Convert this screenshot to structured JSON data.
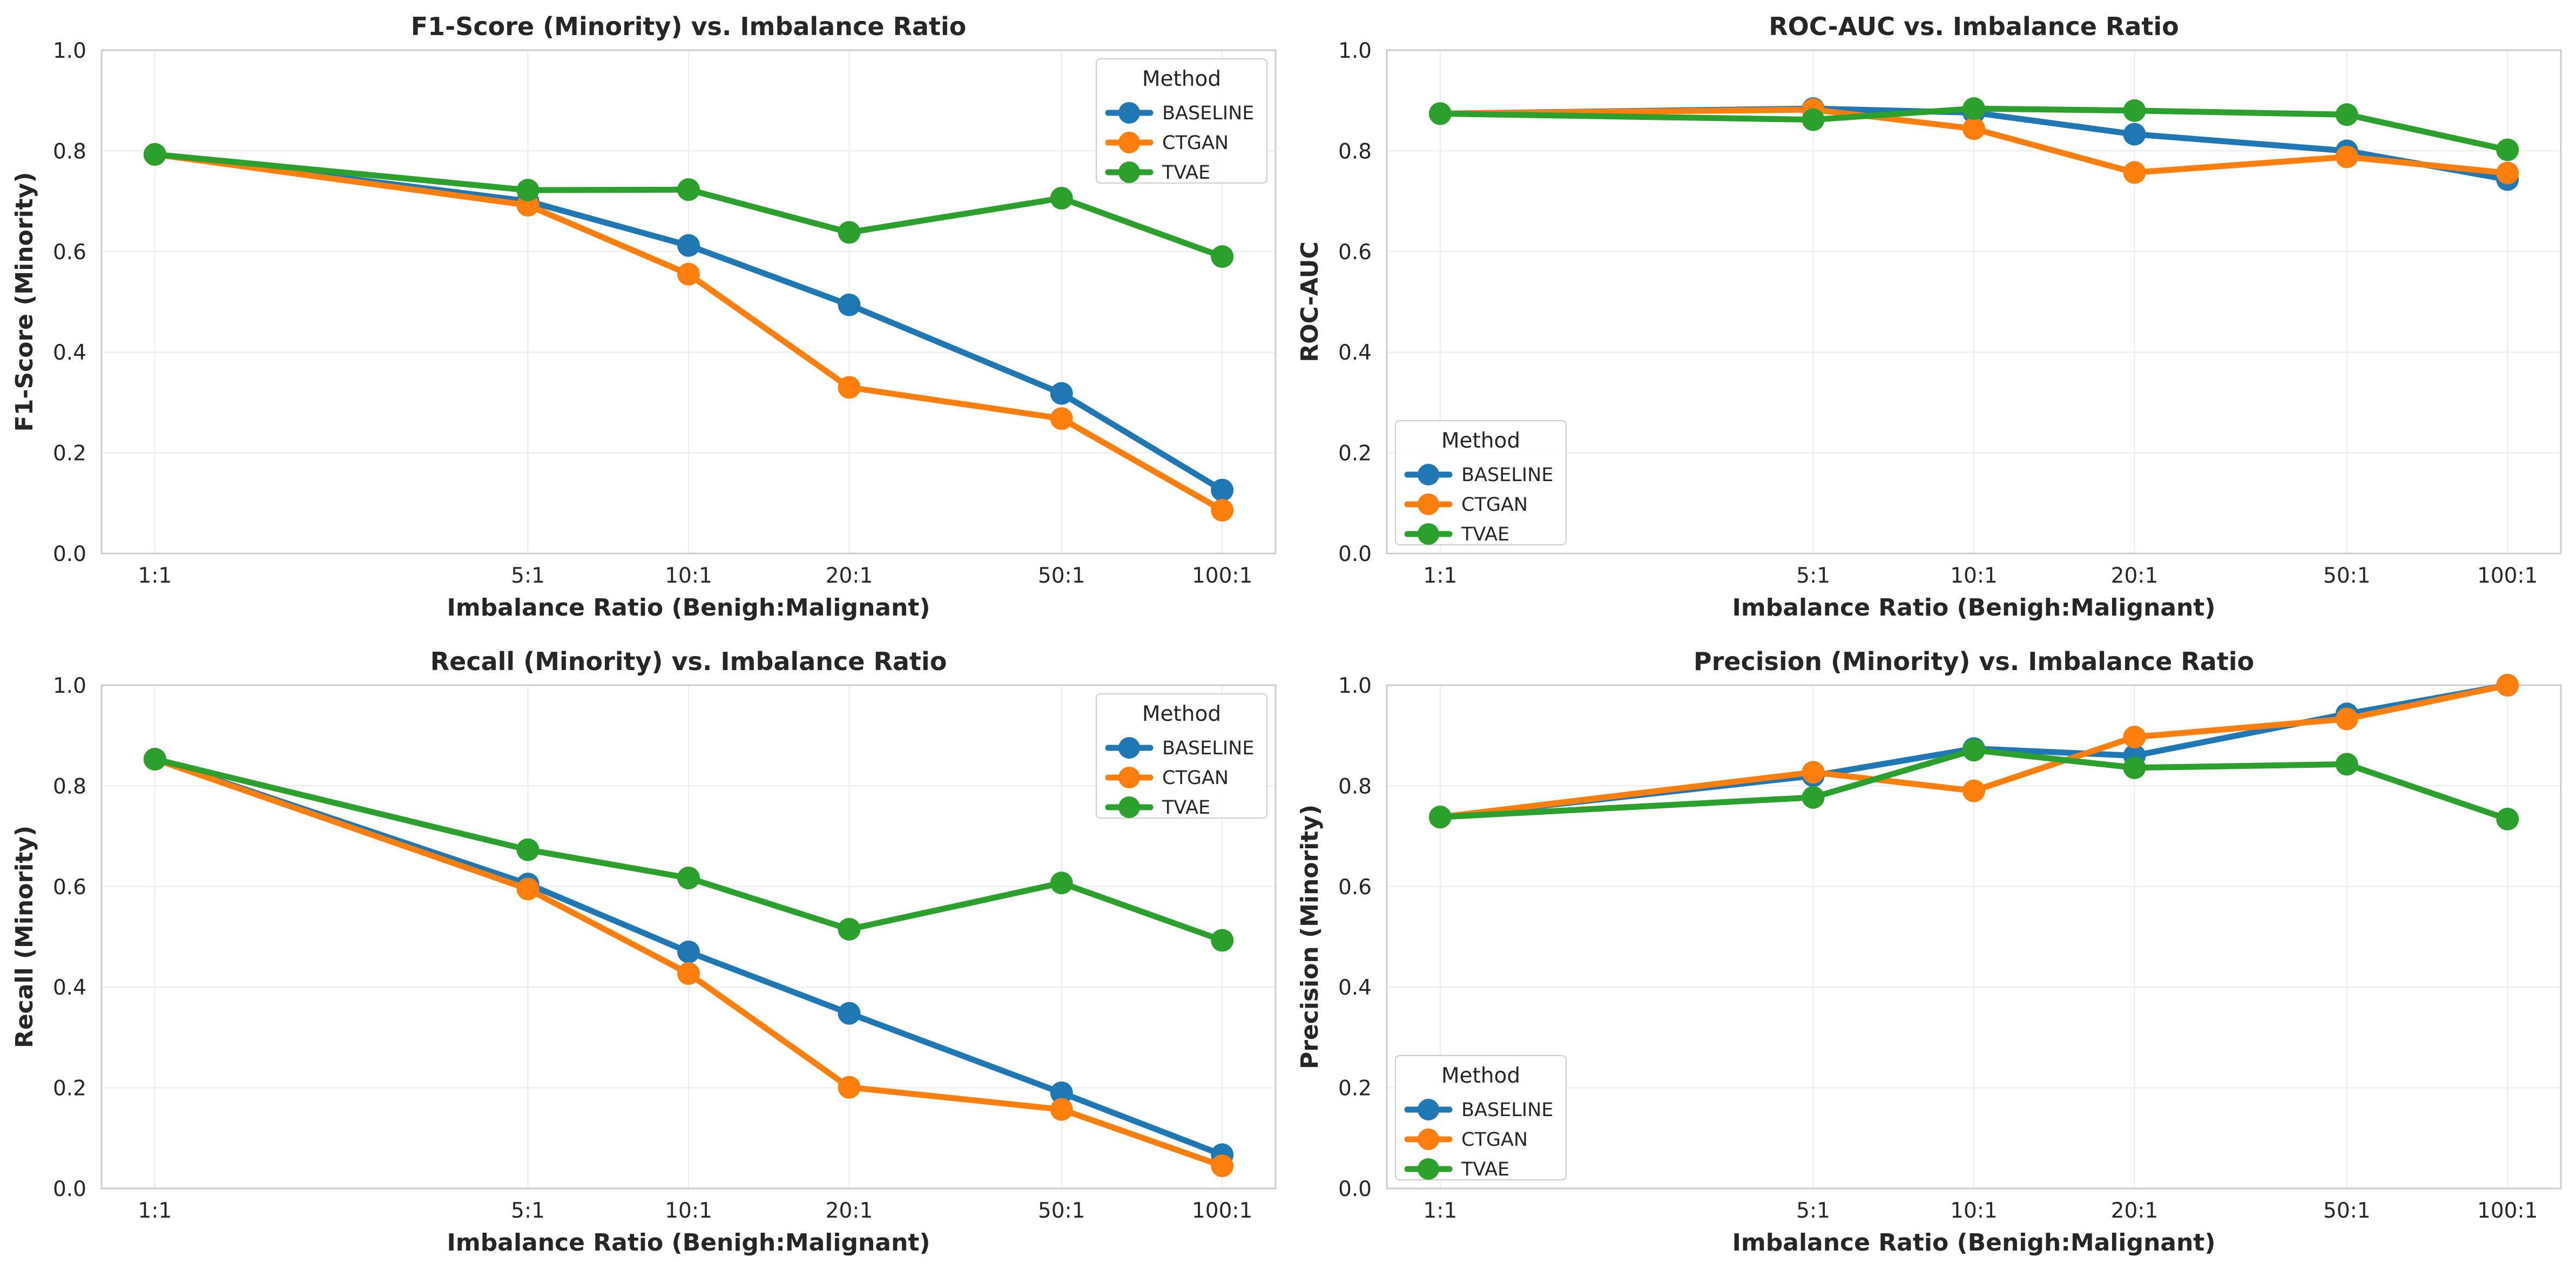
{
  "colors": {
    "BASELINE": "#1f77b4",
    "CTGAN": "#ff7f0e",
    "TVAE": "#2ca02c",
    "grid": "#ebebeb",
    "frame": "#cccccc"
  },
  "chart_data": [
    {
      "type": "line",
      "title": "F1-Score (Minority) vs. Imbalance Ratio",
      "xlabel": "Imbalance Ratio (Benigh:Malignant)",
      "ylabel": "F1-Score (Minority)",
      "x_scale": "log",
      "x": [
        1,
        5,
        10,
        20,
        50,
        100
      ],
      "x_ticklabels": [
        "1:1",
        "5:1",
        "10:1",
        "20:1",
        "50:1",
        "100:1"
      ],
      "ylim": [
        0,
        1
      ],
      "y_ticks": [
        0,
        0.2,
        0.4,
        0.6,
        0.8,
        1.0
      ],
      "y_ticklabels": [
        "0.0",
        "0.2",
        "0.4",
        "0.6",
        "0.8",
        "1.0"
      ],
      "grid": true,
      "legend": {
        "title": "Method",
        "position": "top-right"
      },
      "series": [
        {
          "name": "BASELINE",
          "values": [
            0.793,
            0.7,
            0.612,
            0.494,
            0.318,
            0.126
          ]
        },
        {
          "name": "CTGAN",
          "values": [
            0.793,
            0.692,
            0.555,
            0.33,
            0.268,
            0.086
          ]
        },
        {
          "name": "TVAE",
          "values": [
            0.793,
            0.722,
            0.723,
            0.638,
            0.706,
            0.59
          ]
        }
      ]
    },
    {
      "type": "line",
      "title": "ROC-AUC vs. Imbalance Ratio",
      "xlabel": "Imbalance Ratio (Benigh:Malignant)",
      "ylabel": "ROC-AUC",
      "x_scale": "log",
      "x": [
        1,
        5,
        10,
        20,
        50,
        100
      ],
      "x_ticklabels": [
        "1:1",
        "5:1",
        "10:1",
        "20:1",
        "50:1",
        "100:1"
      ],
      "ylim": [
        0,
        1
      ],
      "y_ticks": [
        0,
        0.2,
        0.4,
        0.6,
        0.8,
        1.0
      ],
      "y_ticklabels": [
        "0.0",
        "0.2",
        "0.4",
        "0.6",
        "0.8",
        "1.0"
      ],
      "grid": true,
      "legend": {
        "title": "Method",
        "position": "bottom-left"
      },
      "series": [
        {
          "name": "BASELINE",
          "values": [
            0.874,
            0.884,
            0.876,
            0.833,
            0.8,
            0.743
          ]
        },
        {
          "name": "CTGAN",
          "values": [
            0.874,
            0.882,
            0.844,
            0.757,
            0.788,
            0.756
          ]
        },
        {
          "name": "TVAE",
          "values": [
            0.874,
            0.862,
            0.884,
            0.88,
            0.872,
            0.802
          ]
        }
      ]
    },
    {
      "type": "line",
      "title": "Recall (Minority) vs. Imbalance Ratio",
      "xlabel": "Imbalance Ratio (Benigh:Malignant)",
      "ylabel": "Recall (Minority)",
      "x_scale": "log",
      "x": [
        1,
        5,
        10,
        20,
        50,
        100
      ],
      "x_ticklabels": [
        "1:1",
        "5:1",
        "10:1",
        "20:1",
        "50:1",
        "100:1"
      ],
      "ylim": [
        0,
        1
      ],
      "y_ticks": [
        0,
        0.2,
        0.4,
        0.6,
        0.8,
        1.0
      ],
      "y_ticklabels": [
        "0.0",
        "0.2",
        "0.4",
        "0.6",
        "0.8",
        "1.0"
      ],
      "grid": true,
      "legend": {
        "title": "Method",
        "position": "top-right"
      },
      "series": [
        {
          "name": "BASELINE",
          "values": [
            0.853,
            0.605,
            0.47,
            0.348,
            0.19,
            0.067
          ]
        },
        {
          "name": "CTGAN",
          "values": [
            0.853,
            0.595,
            0.427,
            0.201,
            0.157,
            0.045
          ]
        },
        {
          "name": "TVAE",
          "values": [
            0.853,
            0.673,
            0.617,
            0.515,
            0.607,
            0.493
          ]
        }
      ]
    },
    {
      "type": "line",
      "title": "Precision (Minority) vs. Imbalance Ratio",
      "xlabel": "Imbalance Ratio (Benigh:Malignant)",
      "ylabel": "Precision (Minority)",
      "x_scale": "log",
      "x": [
        1,
        5,
        10,
        20,
        50,
        100
      ],
      "x_ticklabels": [
        "1:1",
        "5:1",
        "10:1",
        "20:1",
        "50:1",
        "100:1"
      ],
      "ylim": [
        0,
        1
      ],
      "y_ticks": [
        0,
        0.2,
        0.4,
        0.6,
        0.8,
        1.0
      ],
      "y_ticklabels": [
        "0.0",
        "0.2",
        "0.4",
        "0.6",
        "0.8",
        "1.0"
      ],
      "grid": true,
      "legend": {
        "title": "Method",
        "position": "bottom-left"
      },
      "series": [
        {
          "name": "BASELINE",
          "values": [
            0.738,
            0.82,
            0.874,
            0.86,
            0.943,
            1.0
          ]
        },
        {
          "name": "CTGAN",
          "values": [
            0.738,
            0.827,
            0.79,
            0.897,
            0.933,
            1.0
          ]
        },
        {
          "name": "TVAE",
          "values": [
            0.738,
            0.777,
            0.871,
            0.836,
            0.843,
            0.734
          ]
        }
      ]
    }
  ]
}
